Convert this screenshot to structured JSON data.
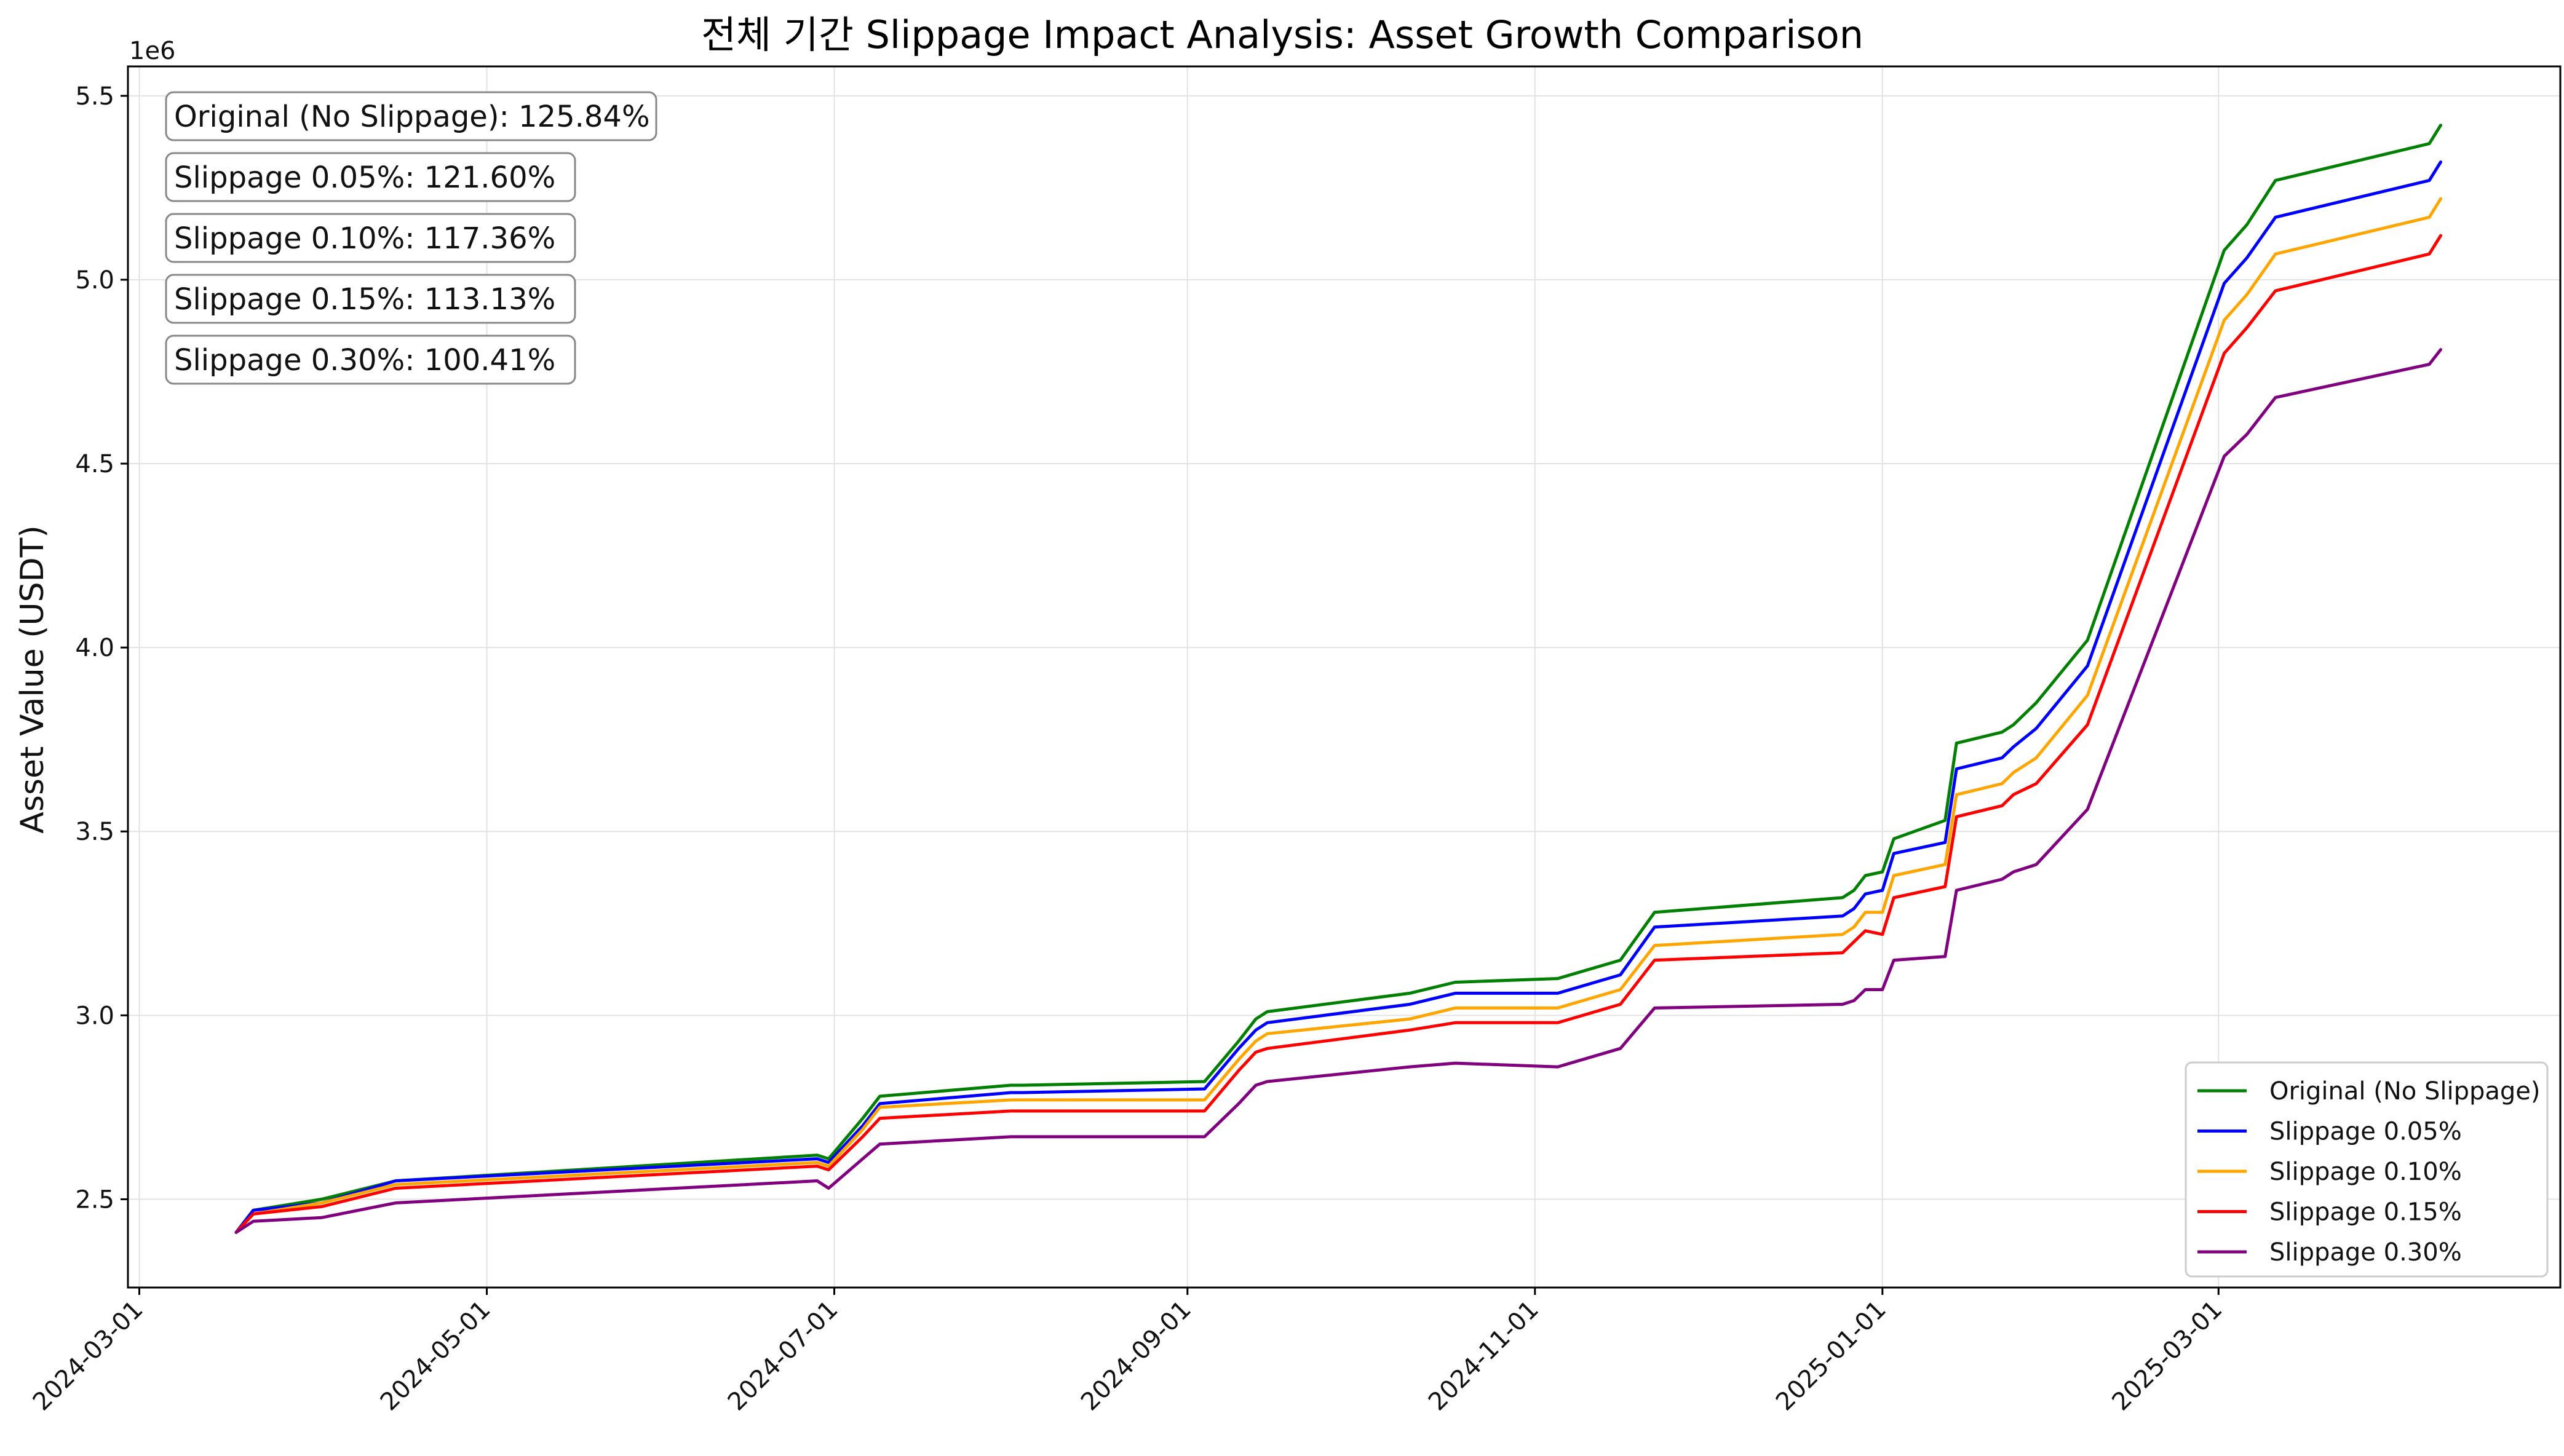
{
  "chart_data": {
    "type": "line",
    "title": "전체 기간 Slippage Impact Analysis: Asset Growth Comparison",
    "xlabel": "",
    "ylabel": "Asset Value (USDT)",
    "y_offset_label": "1e6",
    "xlim": [
      "2024-02-28",
      "2025-04-30"
    ],
    "ylim": [
      2.26,
      5.58
    ],
    "x_ticks": [
      "2024-03-01",
      "2024-05-01",
      "2024-07-01",
      "2024-09-01",
      "2024-11-01",
      "2025-01-01",
      "2025-03-01"
    ],
    "y_ticks": [
      "2.5",
      "3.0",
      "3.5",
      "4.0",
      "4.5",
      "5.0",
      "5.5"
    ],
    "grid": true,
    "legend_position": "lower-right",
    "x": [
      "2024-03-18",
      "2024-03-21",
      "2024-04-02",
      "2024-04-15",
      "2024-06-28",
      "2024-06-30",
      "2024-07-06",
      "2024-07-09",
      "2024-08-01",
      "2024-08-03",
      "2024-09-04",
      "2024-09-10",
      "2024-09-13",
      "2024-09-15",
      "2024-10-10",
      "2024-10-18",
      "2024-11-05",
      "2024-11-16",
      "2024-11-22",
      "2024-12-25",
      "2024-12-27",
      "2024-12-29",
      "2025-01-01",
      "2025-01-03",
      "2025-01-12",
      "2025-01-14",
      "2025-01-22",
      "2025-01-24",
      "2025-01-28",
      "2025-02-06",
      "2025-03-02",
      "2025-03-06",
      "2025-03-11",
      "2025-04-07",
      "2025-04-09"
    ],
    "series": [
      {
        "name": "Original (No Slippage)",
        "color": "#008000",
        "values": [
          2.41,
          2.47,
          2.5,
          2.55,
          2.62,
          2.61,
          2.72,
          2.78,
          2.81,
          2.81,
          2.82,
          2.93,
          2.99,
          3.01,
          3.06,
          3.09,
          3.1,
          3.15,
          3.28,
          3.32,
          3.34,
          3.38,
          3.39,
          3.48,
          3.53,
          3.74,
          3.77,
          3.79,
          3.85,
          4.02,
          5.08,
          5.15,
          5.27,
          5.37,
          5.42
        ]
      },
      {
        "name": "Slippage 0.05%",
        "color": "#0000ff",
        "values": [
          2.41,
          2.47,
          2.49,
          2.55,
          2.61,
          2.6,
          2.7,
          2.76,
          2.79,
          2.79,
          2.8,
          2.91,
          2.96,
          2.98,
          3.03,
          3.06,
          3.06,
          3.11,
          3.24,
          3.27,
          3.29,
          3.33,
          3.34,
          3.44,
          3.47,
          3.67,
          3.7,
          3.73,
          3.78,
          3.95,
          4.99,
          5.06,
          5.17,
          5.27,
          5.32
        ]
      },
      {
        "name": "Slippage 0.10%",
        "color": "#ffa500",
        "values": [
          2.41,
          2.46,
          2.49,
          2.54,
          2.6,
          2.59,
          2.69,
          2.75,
          2.77,
          2.77,
          2.77,
          2.88,
          2.93,
          2.95,
          2.99,
          3.02,
          3.02,
          3.07,
          3.19,
          3.22,
          3.24,
          3.28,
          3.28,
          3.38,
          3.41,
          3.6,
          3.63,
          3.66,
          3.7,
          3.87,
          4.89,
          4.96,
          5.07,
          5.17,
          5.22
        ]
      },
      {
        "name": "Slippage 0.15%",
        "color": "#ff0000",
        "values": [
          2.41,
          2.46,
          2.48,
          2.53,
          2.59,
          2.58,
          2.67,
          2.72,
          2.74,
          2.74,
          2.74,
          2.85,
          2.9,
          2.91,
          2.96,
          2.98,
          2.98,
          3.03,
          3.15,
          3.17,
          3.2,
          3.23,
          3.22,
          3.32,
          3.35,
          3.54,
          3.57,
          3.6,
          3.63,
          3.79,
          4.8,
          4.87,
          4.97,
          5.07,
          5.12
        ]
      },
      {
        "name": "Slippage 0.30%",
        "color": "#800080",
        "values": [
          2.41,
          2.44,
          2.45,
          2.49,
          2.55,
          2.53,
          2.61,
          2.65,
          2.67,
          2.67,
          2.67,
          2.76,
          2.81,
          2.82,
          2.86,
          2.87,
          2.86,
          2.91,
          3.02,
          3.03,
          3.04,
          3.07,
          3.07,
          3.15,
          3.16,
          3.34,
          3.37,
          3.39,
          3.41,
          3.56,
          4.52,
          4.58,
          4.68,
          4.77,
          4.81
        ]
      }
    ],
    "annotations": [
      "Original (No Slippage): 125.84%",
      "Slippage 0.05%: 121.60%",
      "Slippage 0.10%: 117.36%",
      "Slippage 0.15%: 113.13%",
      "Slippage 0.30%: 100.41%"
    ]
  }
}
